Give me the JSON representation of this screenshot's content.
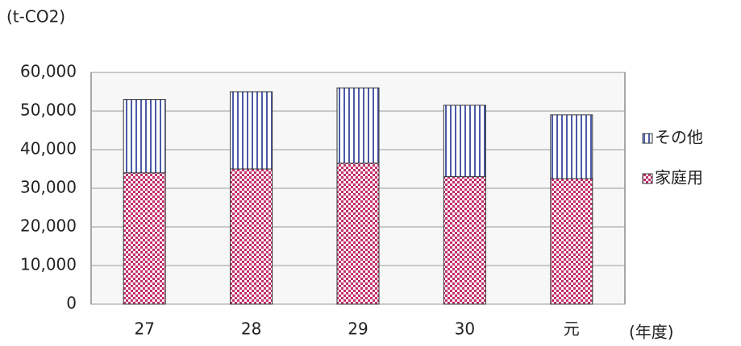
{
  "chart_data": {
    "type": "stacked_bar",
    "y_axis_label": "(t-CO2)",
    "x_axis_label": "(年度)",
    "categories": [
      "27",
      "28",
      "29",
      "30",
      "元"
    ],
    "series": [
      {
        "name": "家庭用",
        "color": "#c2306a",
        "values": [
          34000,
          35000,
          36500,
          33000,
          32500
        ]
      },
      {
        "name": "その他",
        "color": "#4a5aa8",
        "values": [
          19000,
          20000,
          19500,
          18500,
          16500
        ]
      }
    ],
    "ylim": [
      0,
      60000
    ],
    "yticks": [
      0,
      {
        "value": 10000,
        "label": "10,000"
      },
      {
        "value": 20000,
        "label": "20,000"
      },
      {
        "value": 30000,
        "label": "30,000"
      },
      {
        "value": 40000,
        "label": "40,000"
      },
      {
        "value": 50000,
        "label": "50,000"
      },
      {
        "value": 60000,
        "label": "60,000"
      }
    ],
    "grid": true
  }
}
